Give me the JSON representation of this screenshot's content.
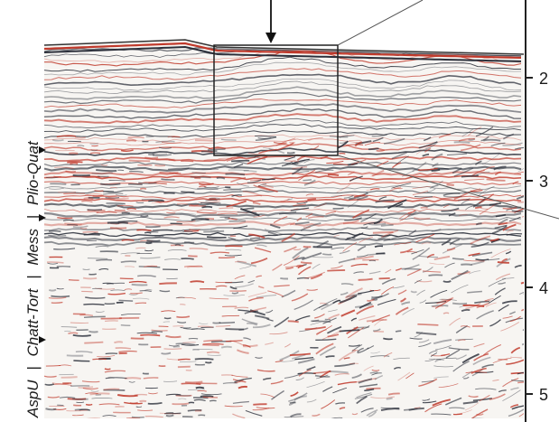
{
  "figure": {
    "units_left": [
      {
        "label": "Plio-Quat"
      },
      {
        "label": "Mess"
      },
      {
        "label": "Chatt-Tort"
      },
      {
        "label": "AspU"
      }
    ],
    "separators": [
      "|",
      "|",
      "|"
    ],
    "time_ticks": [
      "2",
      "3",
      "4",
      "5"
    ],
    "colors": {
      "background": "#ffffff",
      "red_reflector": "#c0392b",
      "dark_reflector": "#2b2f3a",
      "frame": "#222222"
    }
  }
}
